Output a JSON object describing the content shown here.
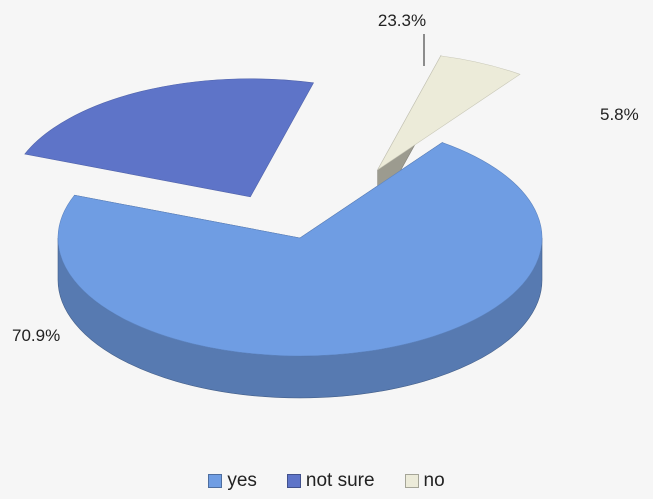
{
  "chart_data": {
    "type": "pie",
    "style": "3d-exploded",
    "categories": [
      "yes",
      "not sure",
      "no"
    ],
    "values": [
      70.9,
      23.3,
      5.8
    ],
    "value_labels": [
      "70.9%",
      "23.3%",
      "5.8%"
    ],
    "colors": {
      "yes": "#6f9de3",
      "not sure": "#5e74c8",
      "no": "#ecebd9"
    },
    "legend_position": "bottom"
  }
}
